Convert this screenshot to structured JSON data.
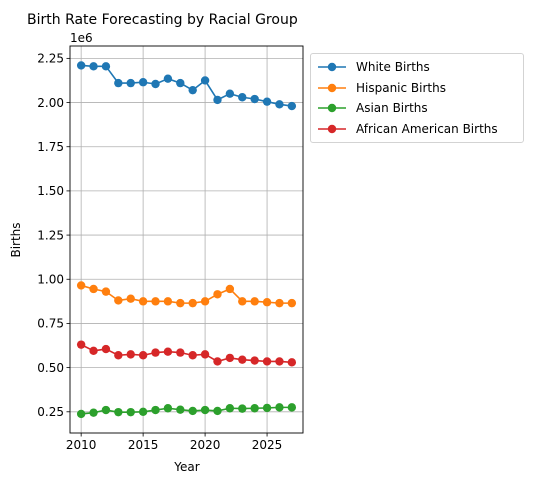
{
  "chart_data": {
    "type": "line",
    "title": "Birth Rate Forecasting by Racial Group",
    "xlabel": "Year",
    "ylabel": "Births",
    "y_offset_label": "1e6",
    "xlim": [
      2009.1,
      2027.9
    ],
    "ylim": [
      0.13,
      2.32
    ],
    "x_ticks": [
      2010,
      2015,
      2020,
      2025
    ],
    "x_tick_labels": [
      "2010",
      "2015",
      "2020",
      "2025"
    ],
    "y_ticks": [
      0.25,
      0.5,
      0.75,
      1.0,
      1.25,
      1.5,
      1.75,
      2.0,
      2.25
    ],
    "y_tick_labels": [
      "0.25",
      "0.50",
      "0.75",
      "1.00",
      "1.25",
      "1.50",
      "1.75",
      "2.00",
      "2.25"
    ],
    "grid": true,
    "legend_position": "outside-top-right",
    "x": [
      2010,
      2011,
      2012,
      2013,
      2014,
      2015,
      2016,
      2017,
      2018,
      2019,
      2020,
      2021,
      2022,
      2023,
      2024,
      2025,
      2026,
      2027
    ],
    "series": [
      {
        "name": "White Births",
        "color": "#1f77b4",
        "values": [
          2.21,
          2.205,
          2.205,
          2.11,
          2.11,
          2.115,
          2.105,
          2.135,
          2.11,
          2.07,
          2.125,
          2.015,
          2.05,
          2.03,
          2.02,
          2.005,
          1.99,
          1.98
        ]
      },
      {
        "name": "Hispanic Births",
        "color": "#ff7f0e",
        "values": [
          0.965,
          0.945,
          0.93,
          0.88,
          0.89,
          0.875,
          0.875,
          0.875,
          0.865,
          0.865,
          0.875,
          0.915,
          0.945,
          0.875,
          0.875,
          0.87,
          0.865,
          0.865
        ]
      },
      {
        "name": "Asian Births",
        "color": "#2ca02c",
        "values": [
          0.238,
          0.245,
          0.26,
          0.248,
          0.248,
          0.25,
          0.26,
          0.27,
          0.262,
          0.255,
          0.26,
          0.255,
          0.27,
          0.268,
          0.27,
          0.272,
          0.275,
          0.275
        ]
      },
      {
        "name": "African American Births",
        "color": "#d62728",
        "values": [
          0.63,
          0.595,
          0.605,
          0.57,
          0.575,
          0.57,
          0.585,
          0.59,
          0.585,
          0.57,
          0.575,
          0.535,
          0.555,
          0.545,
          0.54,
          0.535,
          0.535,
          0.53
        ]
      }
    ]
  }
}
